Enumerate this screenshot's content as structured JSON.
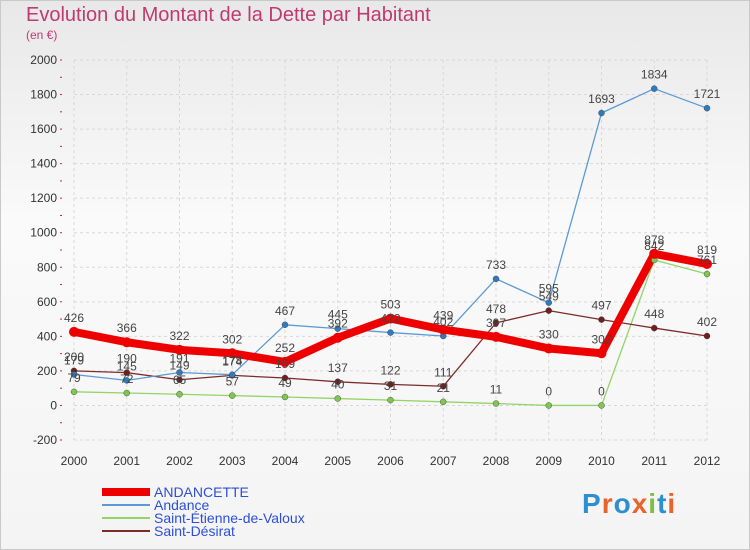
{
  "chart_data": {
    "type": "line",
    "title": "Evolution du Montant de la Dette par Habitant",
    "subtitle": "(en €)",
    "categories": [
      "2000",
      "2001",
      "2002",
      "2003",
      "2004",
      "2005",
      "2006",
      "2007",
      "2008",
      "2009",
      "2010",
      "2011",
      "2012"
    ],
    "ylim": [
      -200,
      2000
    ],
    "yticks": [
      -200,
      0,
      200,
      400,
      600,
      800,
      1000,
      1200,
      1400,
      1600,
      1800,
      2000
    ],
    "grid": true,
    "legend_position": "bottom-left",
    "series": [
      {
        "name": "Saint-Étienne-de-Valoux",
        "color": "#93d468",
        "dot": "#7ec850",
        "width": 1.3,
        "values": [
          79,
          72,
          65,
          57,
          49,
          40,
          31,
          21,
          11,
          0,
          0,
          842,
          761
        ],
        "labels": [
          "79",
          "72",
          "65",
          "57",
          "49",
          "40",
          "31",
          "21",
          "11",
          "0",
          "0",
          "842",
          "761"
        ]
      },
      {
        "name": "Saint-Désirat",
        "color": "#7d2b2b",
        "dot": "#6e1f1f",
        "width": 1.3,
        "values": [
          200,
          190,
          149,
          174,
          159,
          137,
          122,
          111,
          478,
          549,
          497,
          448,
          402
        ],
        "labels": [
          "200",
          "190",
          "149",
          "174",
          "159",
          "137",
          "122",
          "111",
          "478",
          "549",
          "497",
          "448",
          "402"
        ]
      },
      {
        "name": "Andance",
        "color": "#5b9bd5",
        "dot": "#2f7bbf",
        "width": 1.3,
        "values": [
          179,
          145,
          191,
          178,
          467,
          445,
          422,
          402,
          733,
          595,
          1693,
          1834,
          1721
        ],
        "labels": [
          "179",
          "145",
          "191",
          "178",
          "467",
          "445",
          "422",
          "402",
          "733",
          "595",
          "1693",
          "1834",
          "1721"
        ]
      },
      {
        "name": "ANDANCETTE",
        "color": "#ee0000",
        "dot": "#ee0000",
        "width": 8,
        "values": [
          426,
          366,
          322,
          302,
          252,
          392,
          503,
          439,
          397,
          330,
          302,
          878,
          819
        ],
        "labels": [
          "426",
          "366",
          "322",
          "302",
          "252",
          "392",
          "503",
          "439",
          "397",
          "330",
          "302",
          "878",
          "819"
        ]
      }
    ],
    "legend": [
      "ANDANCETTE",
      "Andance",
      "Saint-Étienne-de-Valoux",
      "Saint-Désirat"
    ]
  },
  "brand": {
    "logo_text": "Proxiti",
    "letters": [
      "P",
      "r",
      "o",
      "x",
      "i",
      "t",
      "i"
    ],
    "colors": [
      "#2e8fd0",
      "#e8642b",
      "#2e8fd0",
      "#e8642b",
      "#7cc043",
      "#2e8fd0",
      "#e8642b"
    ]
  }
}
